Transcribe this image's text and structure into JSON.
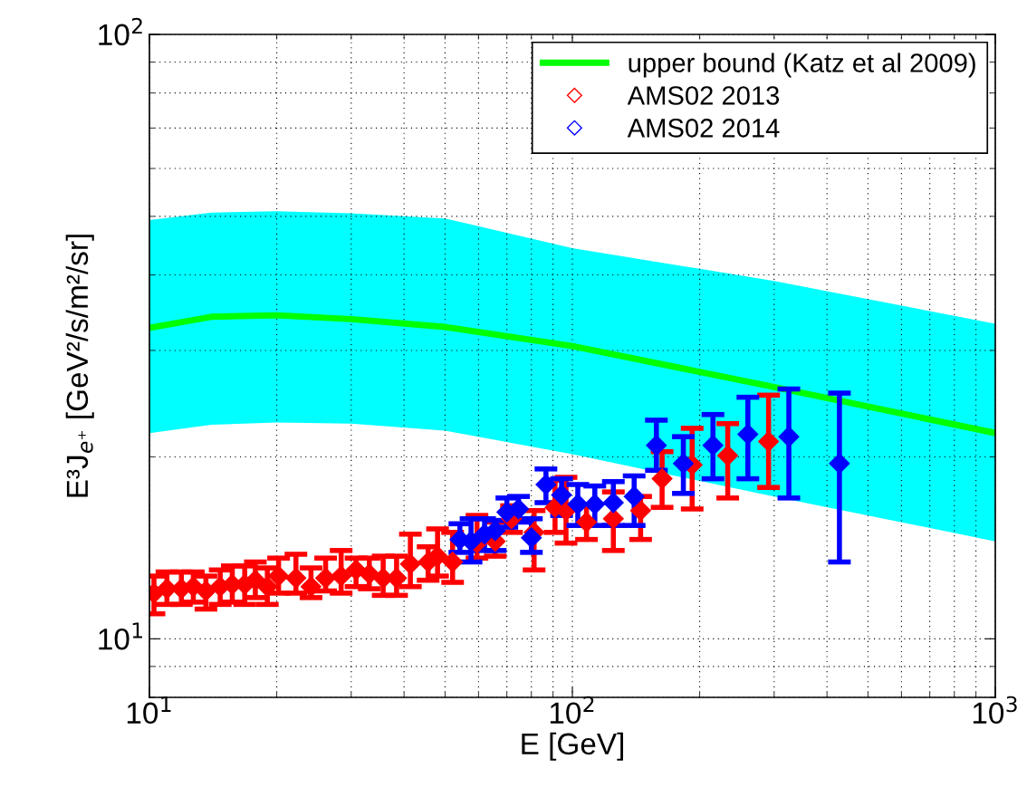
{
  "chart_data": {
    "type": "scatter",
    "xlabel": "E [GeV]",
    "ylabel": "E³J$_{e⁺}$ [GeV²/s/m²/sr]",
    "log": "xy",
    "grid": true,
    "legend": "top right",
    "marker": "diamond",
    "xlim": [
      10,
      1000
    ],
    "xticks": [
      {
        "value": 10,
        "label": "10$^{1}$"
      },
      {
        "value": 100,
        "label": "10$^{2}$"
      },
      {
        "value": 1000,
        "label": "10$^{3}$"
      }
    ],
    "ylim": [
      8,
      100
    ],
    "yticks": [
      {
        "value": 10,
        "label": "10$^{1}$"
      },
      {
        "value": 100,
        "label": "10$^{2}$"
      }
    ],
    "series": [
      {
        "name": "upper bound (Katz et al 2009)",
        "type": "line",
        "color": "#00ff00",
        "marker": "none",
        "x": [
          10,
          14,
          20,
          30,
          50,
          100,
          300,
          1000
        ],
        "values": [
          32.7,
          34.1,
          34.3,
          33.8,
          32.8,
          30.5,
          26.1,
          21.9
        ],
        "lower": [
          21.9,
          22.6,
          22.8,
          22.7,
          22.1,
          20.2,
          17.2,
          14.5
        ],
        "upper": [
          49.3,
          50.7,
          51.0,
          50.6,
          49.6,
          44.3,
          39.1,
          33.2
        ]
      },
      {
        "name": "AMS02 2013",
        "color": "#ff0000",
        "x": [
          10.25,
          11.0,
          11.9,
          12.7,
          13.6,
          14.7,
          15.7,
          16.8,
          17.8,
          19.0,
          20.2,
          22.2,
          24.1,
          26.1,
          28.4,
          30.8,
          33.1,
          35.7,
          38.4,
          41.4,
          45.6,
          48.0,
          52.1,
          59.5,
          65.7,
          71.8,
          81.2,
          91.0,
          96.6,
          108,
          125,
          145,
          163,
          192,
          233,
          291
        ],
        "values": [
          11.9,
          12.1,
          12.1,
          12.2,
          12.0,
          12.2,
          12.3,
          12.3,
          12.5,
          12.2,
          12.7,
          12.6,
          12.2,
          12.6,
          12.7,
          13.0,
          12.8,
          12.6,
          12.6,
          13.3,
          13.4,
          13.7,
          13.4,
          14.4,
          14.5,
          15.8,
          15.0,
          16.5,
          16.3,
          15.6,
          15.8,
          16.3,
          18.4,
          19.4,
          20.1,
          21.2
        ],
        "errors": [
          [
            11.0,
            12.7
          ],
          [
            11.4,
            12.9
          ],
          [
            11.4,
            12.9
          ],
          [
            11.5,
            12.9
          ],
          [
            11.2,
            12.7
          ],
          [
            11.4,
            13.0
          ],
          [
            11.5,
            13.2
          ],
          [
            11.4,
            13.2
          ],
          [
            11.7,
            13.4
          ],
          [
            11.4,
            13.1
          ],
          [
            11.9,
            13.6
          ],
          [
            11.9,
            13.8
          ],
          [
            11.7,
            13.1
          ],
          [
            12.0,
            13.6
          ],
          [
            11.9,
            14.0
          ],
          [
            12.2,
            13.6
          ],
          [
            12.1,
            13.6
          ],
          [
            11.8,
            13.7
          ],
          [
            11.8,
            13.7
          ],
          [
            12.2,
            14.9
          ],
          [
            12.5,
            14.2
          ],
          [
            12.7,
            15.2
          ],
          [
            12.4,
            15.0
          ],
          [
            13.6,
            16.0
          ],
          [
            13.7,
            15.6
          ],
          [
            15.0,
            16.6
          ],
          [
            13.0,
            16.3
          ],
          [
            15.0,
            18.3
          ],
          [
            14.4,
            18.5
          ],
          [
            14.6,
            16.6
          ],
          [
            14.0,
            17.5
          ],
          [
            14.6,
            17.2
          ],
          [
            16.5,
            20.4
          ],
          [
            16.4,
            22.3
          ],
          [
            17.1,
            22.7
          ],
          [
            17.8,
            25.3
          ]
        ]
      },
      {
        "name": "AMS02 2014",
        "color": "#0000ff",
        "x": [
          54.2,
          57.6,
          62.0,
          65.7,
          70.0,
          74.6,
          80.0,
          86.6,
          94.3,
          103,
          113,
          125,
          140,
          158,
          183,
          215,
          260,
          325,
          428
        ],
        "values": [
          14.6,
          14.5,
          14.9,
          15.1,
          16.2,
          16.4,
          14.7,
          18.0,
          17.3,
          16.7,
          16.7,
          16.8,
          17.2,
          20.9,
          19.5,
          20.9,
          21.8,
          21.6,
          19.5
        ],
        "errors": [
          [
            13.9,
            15.5
          ],
          [
            13.4,
            15.8
          ],
          [
            14.0,
            15.8
          ],
          [
            14.0,
            15.7
          ],
          [
            15.3,
            17.1
          ],
          [
            15.6,
            17.2
          ],
          [
            13.9,
            15.8
          ],
          [
            16.8,
            19.1
          ],
          [
            16.0,
            18.4
          ],
          [
            15.4,
            18.0
          ],
          [
            15.4,
            17.9
          ],
          [
            15.4,
            18.2
          ],
          [
            15.4,
            18.6
          ],
          [
            19.0,
            23.0
          ],
          [
            17.4,
            21.6
          ],
          [
            18.4,
            23.5
          ],
          [
            18.4,
            25.1
          ],
          [
            17.1,
            25.9
          ],
          [
            13.4,
            25.5
          ]
        ]
      }
    ]
  }
}
